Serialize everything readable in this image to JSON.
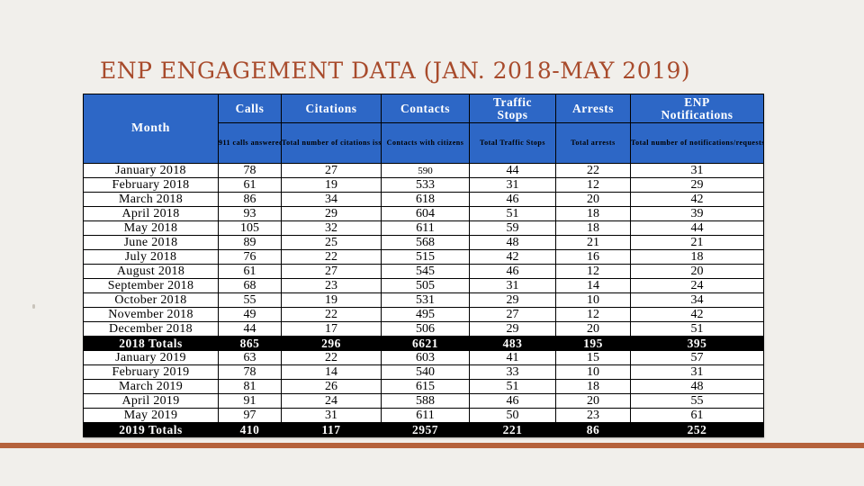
{
  "slide": {
    "title": "ENP ENGAGEMENT DATA (JAN. 2018-MAY 2019)"
  },
  "table": {
    "month_header": "Month",
    "columns": [
      {
        "title": "Calls",
        "subtitle": "911 calls answered"
      },
      {
        "title": "Citations",
        "subtitle": "Total number of citations issued"
      },
      {
        "title": "Contacts",
        "subtitle": "Contacts with citizens"
      },
      {
        "title": "Traffic Stops",
        "subtitle": "Total Traffic Stops"
      },
      {
        "title": "Arrests",
        "subtitle": "Total arrests"
      },
      {
        "title": "ENP Notifications",
        "subtitle": "Total number of notifications/requests received directly from UCPID stakeholders"
      }
    ],
    "rows": [
      {
        "month": "January 2018",
        "calls": "78",
        "citations": "27",
        "contacts": "590",
        "stops": "44",
        "arrests": "22",
        "notifications": "31"
      },
      {
        "month": "February 2018",
        "calls": "61",
        "citations": "19",
        "contacts": "533",
        "stops": "31",
        "arrests": "12",
        "notifications": "29"
      },
      {
        "month": "March 2018",
        "calls": "86",
        "citations": "34",
        "contacts": "618",
        "stops": "46",
        "arrests": "20",
        "notifications": "42"
      },
      {
        "month": "April 2018",
        "calls": "93",
        "citations": "29",
        "contacts": "604",
        "stops": "51",
        "arrests": "18",
        "notifications": "39"
      },
      {
        "month": "May 2018",
        "calls": "105",
        "citations": "32",
        "contacts": "611",
        "stops": "59",
        "arrests": "18",
        "notifications": "44"
      },
      {
        "month": "June 2018",
        "calls": "89",
        "citations": "25",
        "contacts": "568",
        "stops": "48",
        "arrests": "21",
        "notifications": "21"
      },
      {
        "month": "July 2018",
        "calls": "76",
        "citations": "22",
        "contacts": "515",
        "stops": "42",
        "arrests": "16",
        "notifications": "18"
      },
      {
        "month": "August 2018",
        "calls": "61",
        "citations": "27",
        "contacts": "545",
        "stops": "46",
        "arrests": "12",
        "notifications": "20"
      },
      {
        "month": "September 2018",
        "calls": "68",
        "citations": "23",
        "contacts": "505",
        "stops": "31",
        "arrests": "14",
        "notifications": "24"
      },
      {
        "month": "October 2018",
        "calls": "55",
        "citations": "19",
        "contacts": "531",
        "stops": "29",
        "arrests": "10",
        "notifications": "34"
      },
      {
        "month": "November 2018",
        "calls": "49",
        "citations": "22",
        "contacts": "495",
        "stops": "27",
        "arrests": "12",
        "notifications": "42"
      },
      {
        "month": "December 2018",
        "calls": "44",
        "citations": "17",
        "contacts": "506",
        "stops": "29",
        "arrests": "20",
        "notifications": "51"
      },
      {
        "month": "2018 Totals",
        "calls": "865",
        "citations": "296",
        "contacts": "6621",
        "stops": "483",
        "arrests": "195",
        "notifications": "395",
        "total": true
      },
      {
        "month": "January 2019",
        "calls": "63",
        "citations": "22",
        "contacts": "603",
        "stops": "41",
        "arrests": "15",
        "notifications": "57"
      },
      {
        "month": "February 2019",
        "calls": "78",
        "citations": "14",
        "contacts": "540",
        "stops": "33",
        "arrests": "10",
        "notifications": "31"
      },
      {
        "month": "March 2019",
        "calls": "81",
        "citations": "26",
        "contacts": "615",
        "stops": "51",
        "arrests": "18",
        "notifications": "48"
      },
      {
        "month": "April 2019",
        "calls": "91",
        "citations": "24",
        "contacts": "588",
        "stops": "46",
        "arrests": "20",
        "notifications": "55"
      },
      {
        "month": "May 2019",
        "calls": "97",
        "citations": "31",
        "contacts": "611",
        "stops": "50",
        "arrests": "23",
        "notifications": "61"
      },
      {
        "month": "2019 Totals",
        "calls": "410",
        "citations": "117",
        "contacts": "2957",
        "stops": "221",
        "arrests": "86",
        "notifications": "252",
        "total": true
      }
    ]
  },
  "colors": {
    "title": "#a84b2c",
    "header_blue": "#2d67c6",
    "total_row": "#000000",
    "bottom_bar": "#b5623c"
  }
}
